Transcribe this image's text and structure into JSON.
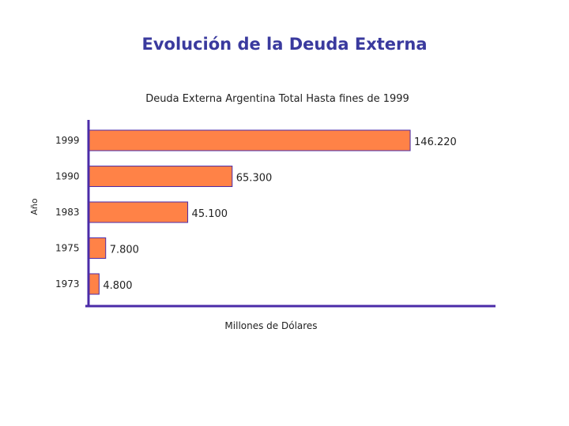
{
  "slide": {
    "title": "Evolución de la Deuda Externa"
  },
  "chart_data": {
    "type": "bar",
    "orientation": "horizontal",
    "title": "Deuda Externa Argentina Total Hasta fines de 1999",
    "xlabel": "Millones de Dólares",
    "ylabel": "Año",
    "categories": [
      "1999",
      "1990",
      "1983",
      "1975",
      "1973"
    ],
    "values": [
      146.22,
      65.3,
      45.1,
      7.8,
      4.8
    ],
    "data_labels": [
      "146.220",
      "65.300",
      "45.100",
      "7.800",
      "4.800"
    ],
    "xlim": [
      0,
      185
    ],
    "grid": false,
    "legend": "none",
    "colors": {
      "bar_fill": "#ff8247",
      "bar_stroke": "#4b2ba8",
      "axis": "#4b2ba8"
    }
  }
}
